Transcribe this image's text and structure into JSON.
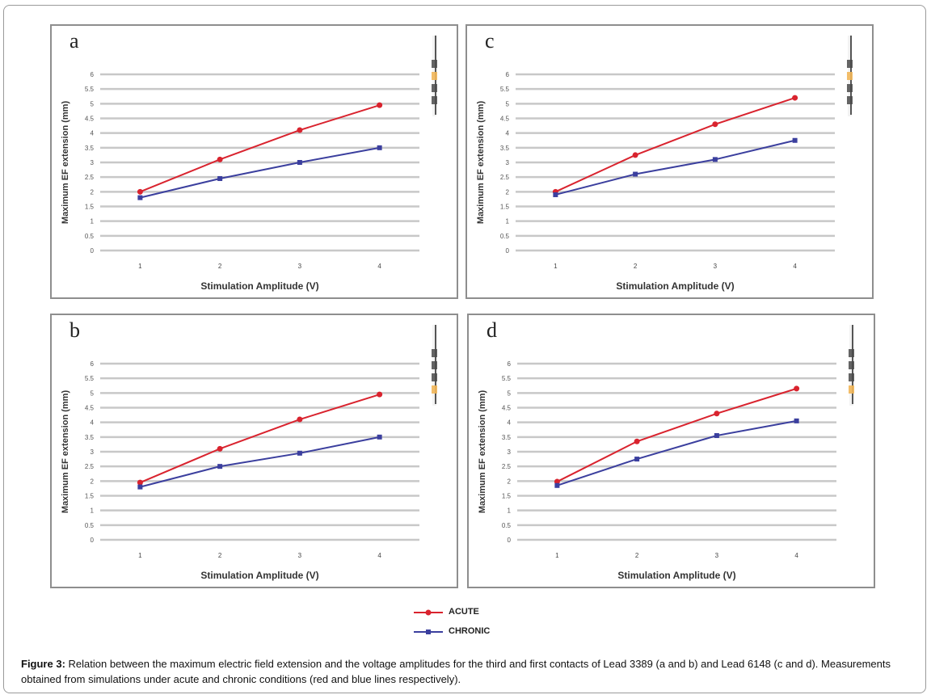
{
  "legend": {
    "acute": {
      "label": "ACUTE",
      "color": "#d9232e"
    },
    "chronic": {
      "label": "CHRONIC",
      "color": "#3b3f9e"
    }
  },
  "caption": {
    "label": "Figure 3:",
    "text": " Relation between the maximum electric field extension and the voltage amplitudes for the third and first contacts of Lead 3389 (a and b) and Lead 6148 (c and d). Measurements obtained from simulations under acute and chronic conditions (red and blue lines respectively)."
  },
  "chart_data": [
    {
      "panel": "a",
      "type": "line",
      "xlabel": "Stimulation Amplitude (V)",
      "ylabel": "Maximum EF extension (mm)",
      "categories": [
        "1",
        "2",
        "3",
        "4"
      ],
      "yticks": [
        "0",
        "0.5",
        "1",
        "1.5",
        "2",
        "2.5",
        "3",
        "3.5",
        "4",
        "4.5",
        "5",
        "5.5",
        "6"
      ],
      "ylim": [
        0,
        6
      ],
      "grid": true,
      "series": [
        {
          "name": "ACUTE",
          "values": [
            2.0,
            3.1,
            4.1,
            4.95
          ]
        },
        {
          "name": "CHRONIC",
          "values": [
            1.8,
            2.45,
            3.0,
            3.5
          ]
        }
      ],
      "lead_icon": {
        "active_contact": "third",
        "lead": "3389"
      }
    },
    {
      "panel": "c",
      "type": "line",
      "xlabel": "Stimulation Amplitude (V)",
      "ylabel": "Maximum EF extension (mm)",
      "categories": [
        "1",
        "2",
        "3",
        "4"
      ],
      "yticks": [
        "0",
        "0.5",
        "1",
        "1.5",
        "2",
        "2.5",
        "3",
        "3.5",
        "4",
        "4.5",
        "5",
        "5.5",
        "6"
      ],
      "ylim": [
        0,
        6
      ],
      "grid": true,
      "series": [
        {
          "name": "ACUTE",
          "values": [
            2.0,
            3.25,
            4.3,
            5.2
          ]
        },
        {
          "name": "CHRONIC",
          "values": [
            1.9,
            2.6,
            3.1,
            3.75
          ]
        }
      ],
      "lead_icon": {
        "active_contact": "third",
        "lead": "6148"
      }
    },
    {
      "panel": "b",
      "type": "line",
      "xlabel": "Stimulation Amplitude (V)",
      "ylabel": "Maximum EF extension (mm)",
      "categories": [
        "1",
        "2",
        "3",
        "4"
      ],
      "yticks": [
        "0",
        "0.5",
        "1",
        "1.5",
        "2",
        "2.5",
        "3",
        "3.5",
        "4",
        "4.5",
        "5",
        "5.5",
        "6"
      ],
      "ylim": [
        0,
        6
      ],
      "grid": true,
      "series": [
        {
          "name": "ACUTE",
          "values": [
            1.95,
            3.1,
            4.1,
            4.95
          ]
        },
        {
          "name": "CHRONIC",
          "values": [
            1.8,
            2.5,
            2.95,
            3.5
          ]
        }
      ],
      "lead_icon": {
        "active_contact": "first",
        "lead": "3389"
      }
    },
    {
      "panel": "d",
      "type": "line",
      "xlabel": "Stimulation Amplitude (V)",
      "ylabel": "Maximum EF extension (mm)",
      "categories": [
        "1",
        "2",
        "3",
        "4"
      ],
      "yticks": [
        "0",
        "0.5",
        "1",
        "1.5",
        "2",
        "2.5",
        "3",
        "3.5",
        "4",
        "4.5",
        "5",
        "5.5",
        "6"
      ],
      "ylim": [
        0,
        6
      ],
      "grid": true,
      "series": [
        {
          "name": "ACUTE",
          "values": [
            1.98,
            3.35,
            4.3,
            5.15
          ]
        },
        {
          "name": "CHRONIC",
          "values": [
            1.85,
            2.75,
            3.55,
            4.05
          ]
        }
      ],
      "lead_icon": {
        "active_contact": "first",
        "lead": "6148"
      }
    }
  ]
}
